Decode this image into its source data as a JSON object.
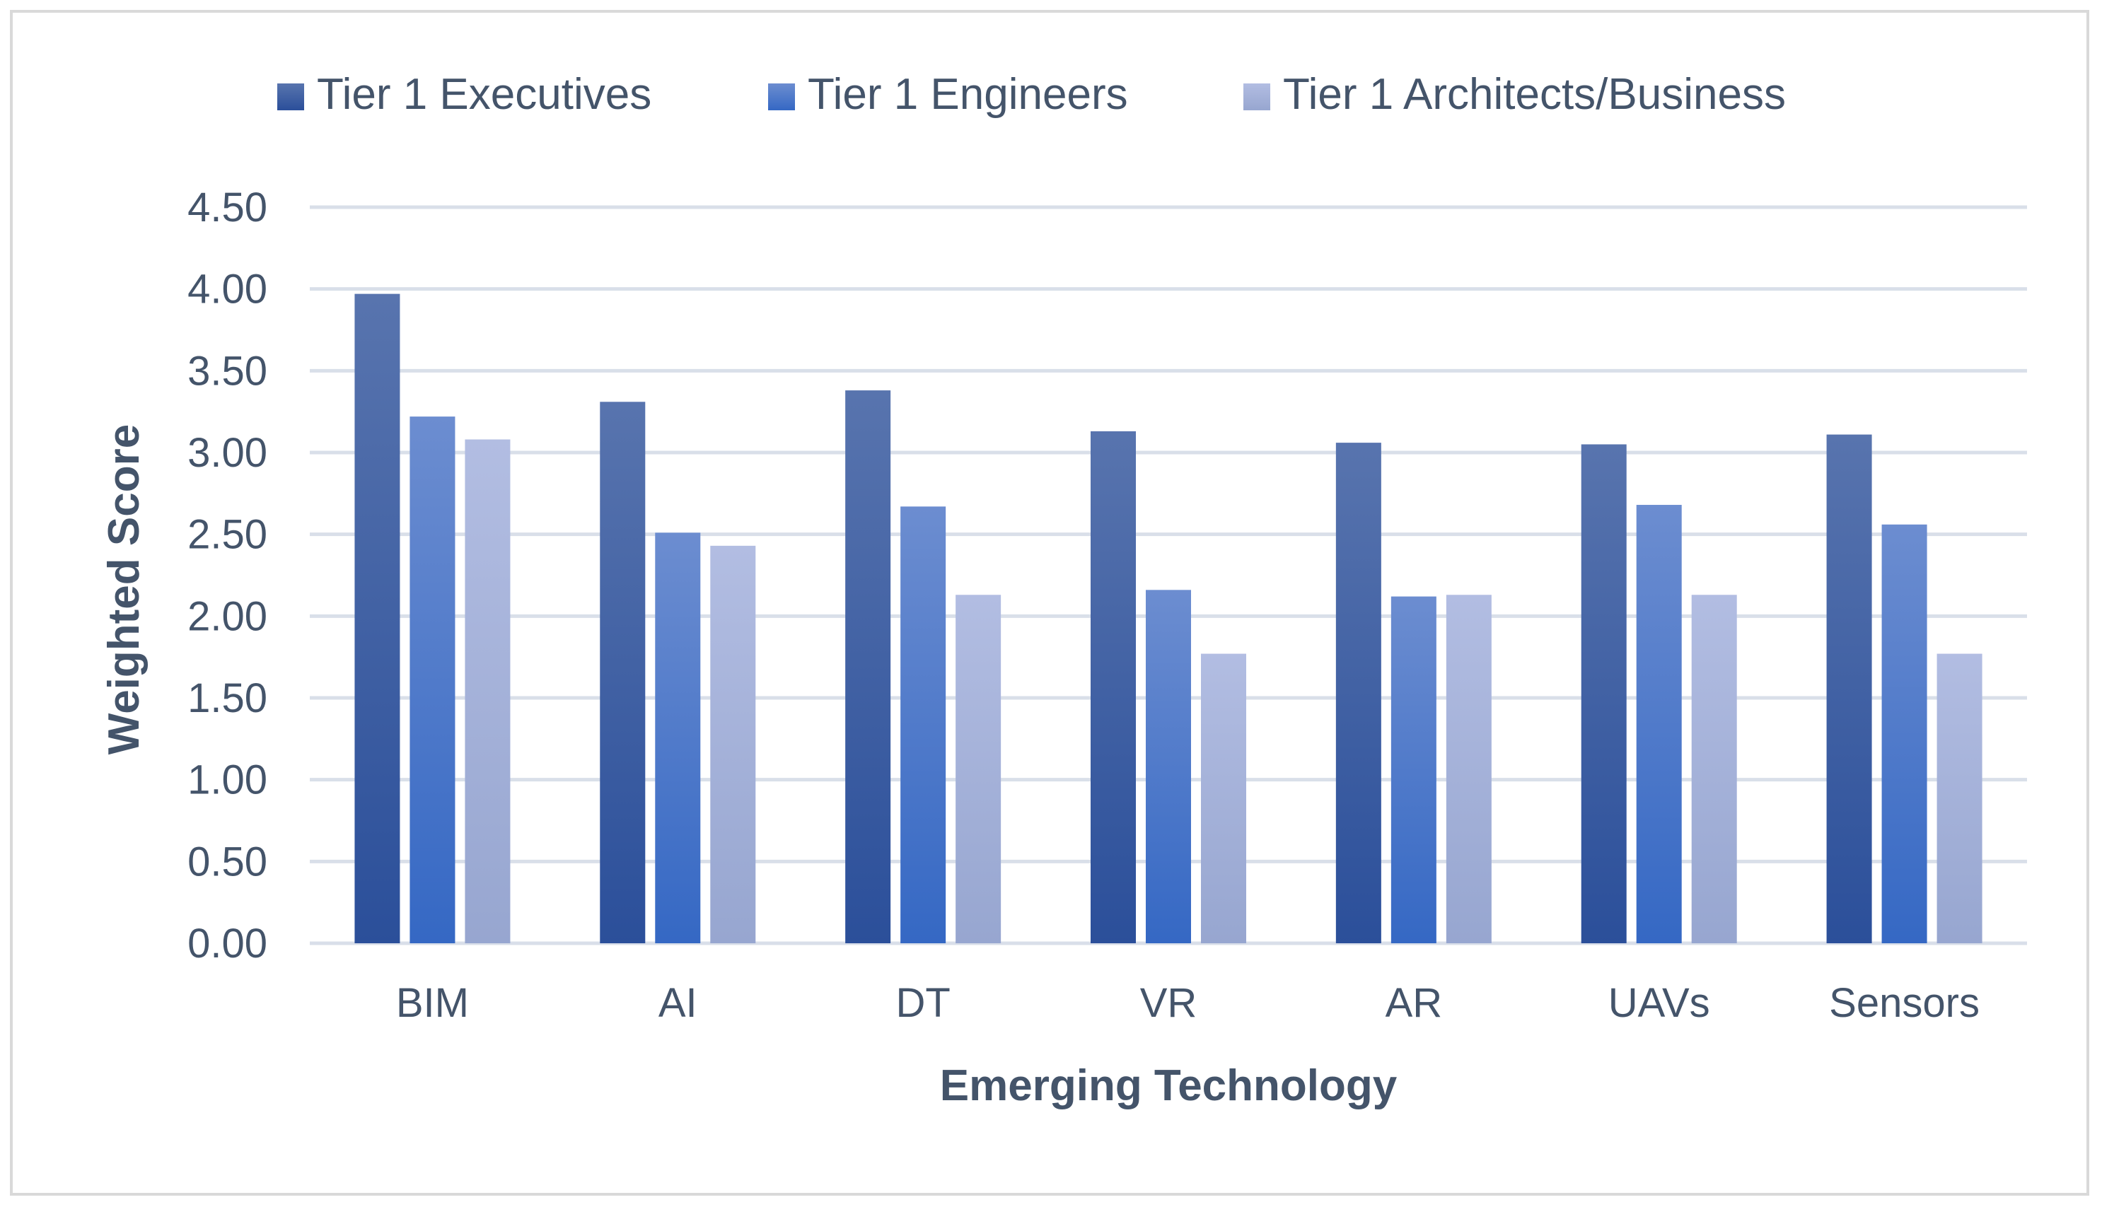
{
  "chart_data": {
    "type": "bar",
    "title": "",
    "xlabel": "Emerging Technology",
    "ylabel": "Weighted Score",
    "ylim": [
      0,
      4.5
    ],
    "ytick_step": 0.5,
    "ytick_labels": [
      "0.00",
      "0.50",
      "1.00",
      "1.50",
      "2.00",
      "2.50",
      "3.00",
      "3.50",
      "4.00",
      "4.50"
    ],
    "grid": true,
    "legend_position": "top",
    "categories": [
      "BIM",
      "AI",
      "DT",
      "VR",
      "AR",
      "UAVs",
      "Sensors"
    ],
    "series": [
      {
        "name": "Tier 1 Executives",
        "color": "#2b4f9a",
        "color_top": "#5874ae",
        "values": [
          3.97,
          3.31,
          3.38,
          3.13,
          3.06,
          3.05,
          3.11
        ]
      },
      {
        "name": "Tier 1 Engineers",
        "color": "#3568c4",
        "color_top": "#6c8dd0",
        "values": [
          3.22,
          2.51,
          2.67,
          2.16,
          2.12,
          2.68,
          2.56
        ]
      },
      {
        "name": "Tier 1 Architects/Business",
        "color": "#97a6d0",
        "color_top": "#b2bde2",
        "values": [
          3.08,
          2.43,
          2.13,
          1.77,
          2.13,
          2.13,
          1.77
        ]
      }
    ],
    "colors": {
      "axis_text": "#44546a",
      "grid": "#d9dfe9",
      "axis_line": "#d9dfe9"
    }
  }
}
